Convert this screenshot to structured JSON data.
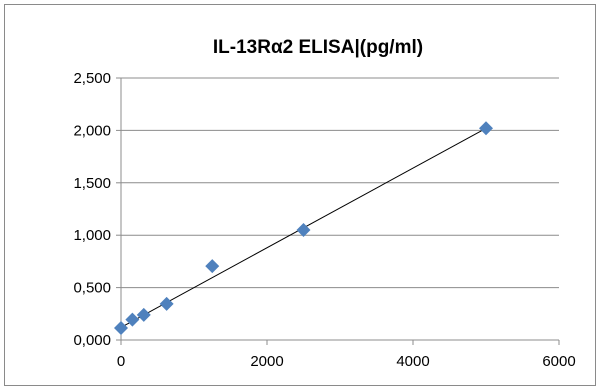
{
  "chart_data": {
    "type": "scatter",
    "title": "IL-13Rα2 ELISA|(pg/ml)",
    "xlabel": "",
    "ylabel": "",
    "xlim": [
      0,
      6000
    ],
    "ylim": [
      0,
      2.5
    ],
    "x_ticks": [
      0,
      2000,
      4000,
      6000
    ],
    "x_tick_labels": [
      "0",
      "2000",
      "4000",
      "6000"
    ],
    "y_ticks": [
      0,
      0.5,
      1,
      1.5,
      2,
      2.5
    ],
    "y_tick_labels": [
      "0,000",
      "0,500",
      "1,000",
      "1,500",
      "2,000",
      "2,500"
    ],
    "grid": "horizontal",
    "legend": "none",
    "series": [
      {
        "x": [
          0,
          156,
          312,
          625,
          1250,
          2500,
          5000
        ],
        "y": [
          0.115,
          0.195,
          0.24,
          0.345,
          0.705,
          1.05,
          2.02
        ],
        "marker": "diamond",
        "color": "#4f81bd"
      }
    ],
    "trendline": {
      "type": "linear",
      "x": [
        0,
        5000
      ],
      "y": [
        0.12,
        2.02
      ],
      "color": "#000000"
    }
  }
}
